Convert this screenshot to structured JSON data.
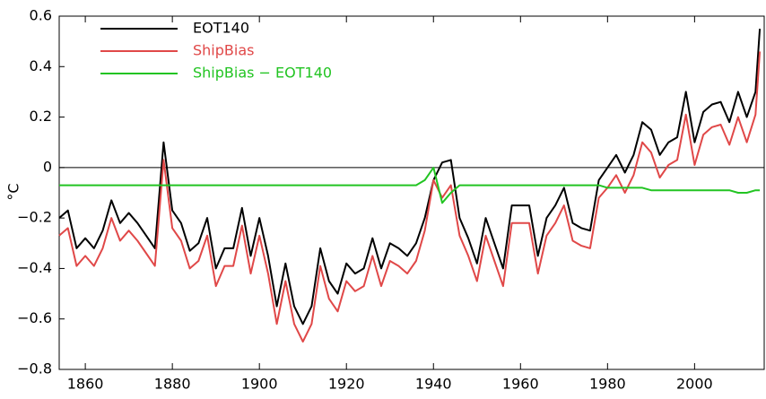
{
  "chart_data": {
    "type": "line",
    "y_label": "°C",
    "xlim": [
      1854,
      2016
    ],
    "xticks": [
      1860,
      1880,
      1900,
      1920,
      1940,
      1960,
      1980,
      2000
    ],
    "ylim": [
      -0.8,
      0.6
    ],
    "yticks": [
      {
        "value": -0.8,
        "label": "−0.8"
      },
      {
        "value": -0.6,
        "label": "−0.6"
      },
      {
        "value": -0.4,
        "label": "−0.4"
      },
      {
        "value": -0.2,
        "label": "−0.2"
      },
      0,
      0.2,
      0.4,
      0.6
    ],
    "reference_line": 0,
    "legend": "upper left",
    "x": [
      1854,
      1856,
      1858,
      1860,
      1862,
      1864,
      1866,
      1868,
      1870,
      1872,
      1874,
      1876,
      1878,
      1880,
      1882,
      1884,
      1886,
      1888,
      1890,
      1892,
      1894,
      1896,
      1898,
      1900,
      1902,
      1904,
      1906,
      1908,
      1910,
      1912,
      1914,
      1916,
      1918,
      1920,
      1922,
      1924,
      1926,
      1928,
      1930,
      1932,
      1934,
      1936,
      1938,
      1940,
      1942,
      1944,
      1946,
      1948,
      1950,
      1952,
      1954,
      1956,
      1958,
      1960,
      1962,
      1964,
      1966,
      1968,
      1970,
      1972,
      1974,
      1976,
      1978,
      1980,
      1982,
      1984,
      1986,
      1988,
      1990,
      1992,
      1994,
      1996,
      1998,
      2000,
      2002,
      2004,
      2006,
      2008,
      2010,
      2012,
      2014,
      2015
    ],
    "series": [
      {
        "name": "EOT140",
        "color": "#000000",
        "values": [
          -0.2,
          -0.17,
          -0.32,
          -0.28,
          -0.32,
          -0.25,
          -0.13,
          -0.22,
          -0.18,
          -0.22,
          -0.27,
          -0.32,
          0.1,
          -0.17,
          -0.22,
          -0.33,
          -0.3,
          -0.2,
          -0.4,
          -0.32,
          -0.32,
          -0.16,
          -0.35,
          -0.2,
          -0.35,
          -0.55,
          -0.38,
          -0.55,
          -0.62,
          -0.55,
          -0.32,
          -0.45,
          -0.5,
          -0.38,
          -0.42,
          -0.4,
          -0.28,
          -0.4,
          -0.3,
          -0.32,
          -0.35,
          -0.3,
          -0.2,
          -0.05,
          0.02,
          0.03,
          -0.2,
          -0.28,
          -0.38,
          -0.2,
          -0.3,
          -0.4,
          -0.15,
          -0.15,
          -0.15,
          -0.35,
          -0.2,
          -0.15,
          -0.08,
          -0.22,
          -0.24,
          -0.25,
          -0.05,
          0.0,
          0.05,
          -0.02,
          0.05,
          0.18,
          0.15,
          0.05,
          0.1,
          0.12,
          0.3,
          0.1,
          0.22,
          0.25,
          0.26,
          0.18,
          0.3,
          0.2,
          0.3,
          0.55
        ]
      },
      {
        "name": "ShipBias",
        "color": "#e04848",
        "values": [
          -0.27,
          -0.24,
          -0.39,
          -0.35,
          -0.39,
          -0.32,
          -0.2,
          -0.29,
          -0.25,
          -0.29,
          -0.34,
          -0.39,
          0.03,
          -0.24,
          -0.29,
          -0.4,
          -0.37,
          -0.27,
          -0.47,
          -0.39,
          -0.39,
          -0.23,
          -0.42,
          -0.27,
          -0.42,
          -0.62,
          -0.45,
          -0.62,
          -0.69,
          -0.62,
          -0.39,
          -0.52,
          -0.57,
          -0.45,
          -0.49,
          -0.47,
          -0.35,
          -0.47,
          -0.37,
          -0.39,
          -0.42,
          -0.37,
          -0.25,
          -0.05,
          -0.12,
          -0.07,
          -0.27,
          -0.35,
          -0.45,
          -0.27,
          -0.37,
          -0.47,
          -0.22,
          -0.22,
          -0.22,
          -0.42,
          -0.27,
          -0.22,
          -0.15,
          -0.29,
          -0.31,
          -0.32,
          -0.12,
          -0.08,
          -0.03,
          -0.1,
          -0.03,
          0.1,
          0.06,
          -0.04,
          0.01,
          0.03,
          0.21,
          0.01,
          0.13,
          0.16,
          0.17,
          0.09,
          0.2,
          0.1,
          0.21,
          0.46
        ]
      },
      {
        "name": "ShipBias − EOT140",
        "color": "#22c422",
        "values": [
          -0.07,
          -0.07,
          -0.07,
          -0.07,
          -0.07,
          -0.07,
          -0.07,
          -0.07,
          -0.07,
          -0.07,
          -0.07,
          -0.07,
          -0.07,
          -0.07,
          -0.07,
          -0.07,
          -0.07,
          -0.07,
          -0.07,
          -0.07,
          -0.07,
          -0.07,
          -0.07,
          -0.07,
          -0.07,
          -0.07,
          -0.07,
          -0.07,
          -0.07,
          -0.07,
          -0.07,
          -0.07,
          -0.07,
          -0.07,
          -0.07,
          -0.07,
          -0.07,
          -0.07,
          -0.07,
          -0.07,
          -0.07,
          -0.07,
          -0.05,
          0.0,
          -0.14,
          -0.1,
          -0.07,
          -0.07,
          -0.07,
          -0.07,
          -0.07,
          -0.07,
          -0.07,
          -0.07,
          -0.07,
          -0.07,
          -0.07,
          -0.07,
          -0.07,
          -0.07,
          -0.07,
          -0.07,
          -0.07,
          -0.08,
          -0.08,
          -0.08,
          -0.08,
          -0.08,
          -0.09,
          -0.09,
          -0.09,
          -0.09,
          -0.09,
          -0.09,
          -0.09,
          -0.09,
          -0.09,
          -0.09,
          -0.1,
          -0.1,
          -0.09,
          -0.09
        ]
      }
    ]
  }
}
